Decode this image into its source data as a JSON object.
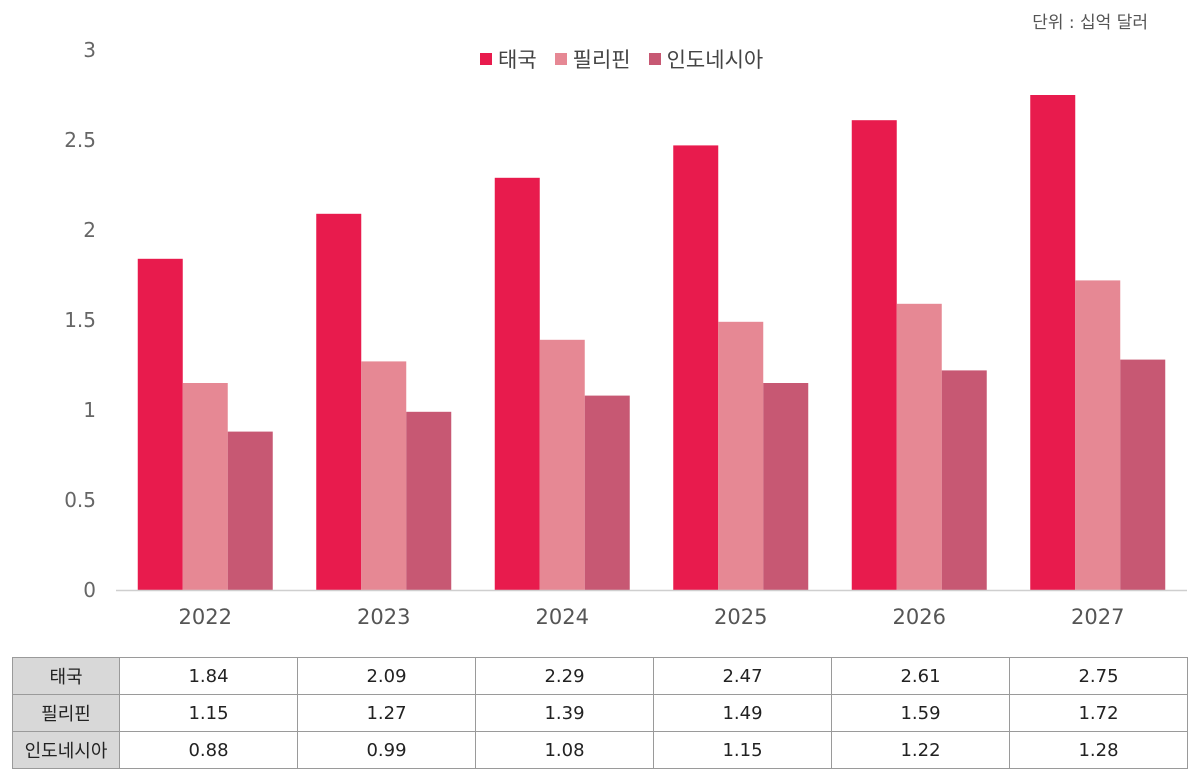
{
  "unit_label": "단위 : 십억 달러",
  "chart_data": {
    "type": "bar",
    "categories": [
      "2022",
      "2023",
      "2024",
      "2025",
      "2026",
      "2027"
    ],
    "series": [
      {
        "name": "태국",
        "values": [
          1.84,
          2.09,
          2.29,
          2.47,
          2.61,
          2.75
        ],
        "color": "#e81b4d"
      },
      {
        "name": "필리핀",
        "values": [
          1.15,
          1.27,
          1.39,
          1.49,
          1.59,
          1.72
        ],
        "color": "#e68894"
      },
      {
        "name": "인도네시아",
        "values": [
          0.88,
          0.99,
          1.08,
          1.15,
          1.22,
          1.28
        ],
        "color": "#c75873"
      }
    ],
    "yticks": [
      "0",
      "0.5",
      "1",
      "1.5",
      "2",
      "2.5",
      "3"
    ],
    "ylim": [
      0,
      3
    ],
    "grid": false,
    "legend": "top-center"
  },
  "table": {
    "rows": [
      {
        "label": "태국",
        "values": [
          "1.84",
          "2.09",
          "2.29",
          "2.47",
          "2.61",
          "2.75"
        ]
      },
      {
        "label": "필리핀",
        "values": [
          "1.15",
          "1.27",
          "1.39",
          "1.49",
          "1.59",
          "1.72"
        ]
      },
      {
        "label": "인도네시아",
        "values": [
          "0.88",
          "0.99",
          "1.08",
          "1.15",
          "1.22",
          "1.28"
        ]
      }
    ]
  }
}
